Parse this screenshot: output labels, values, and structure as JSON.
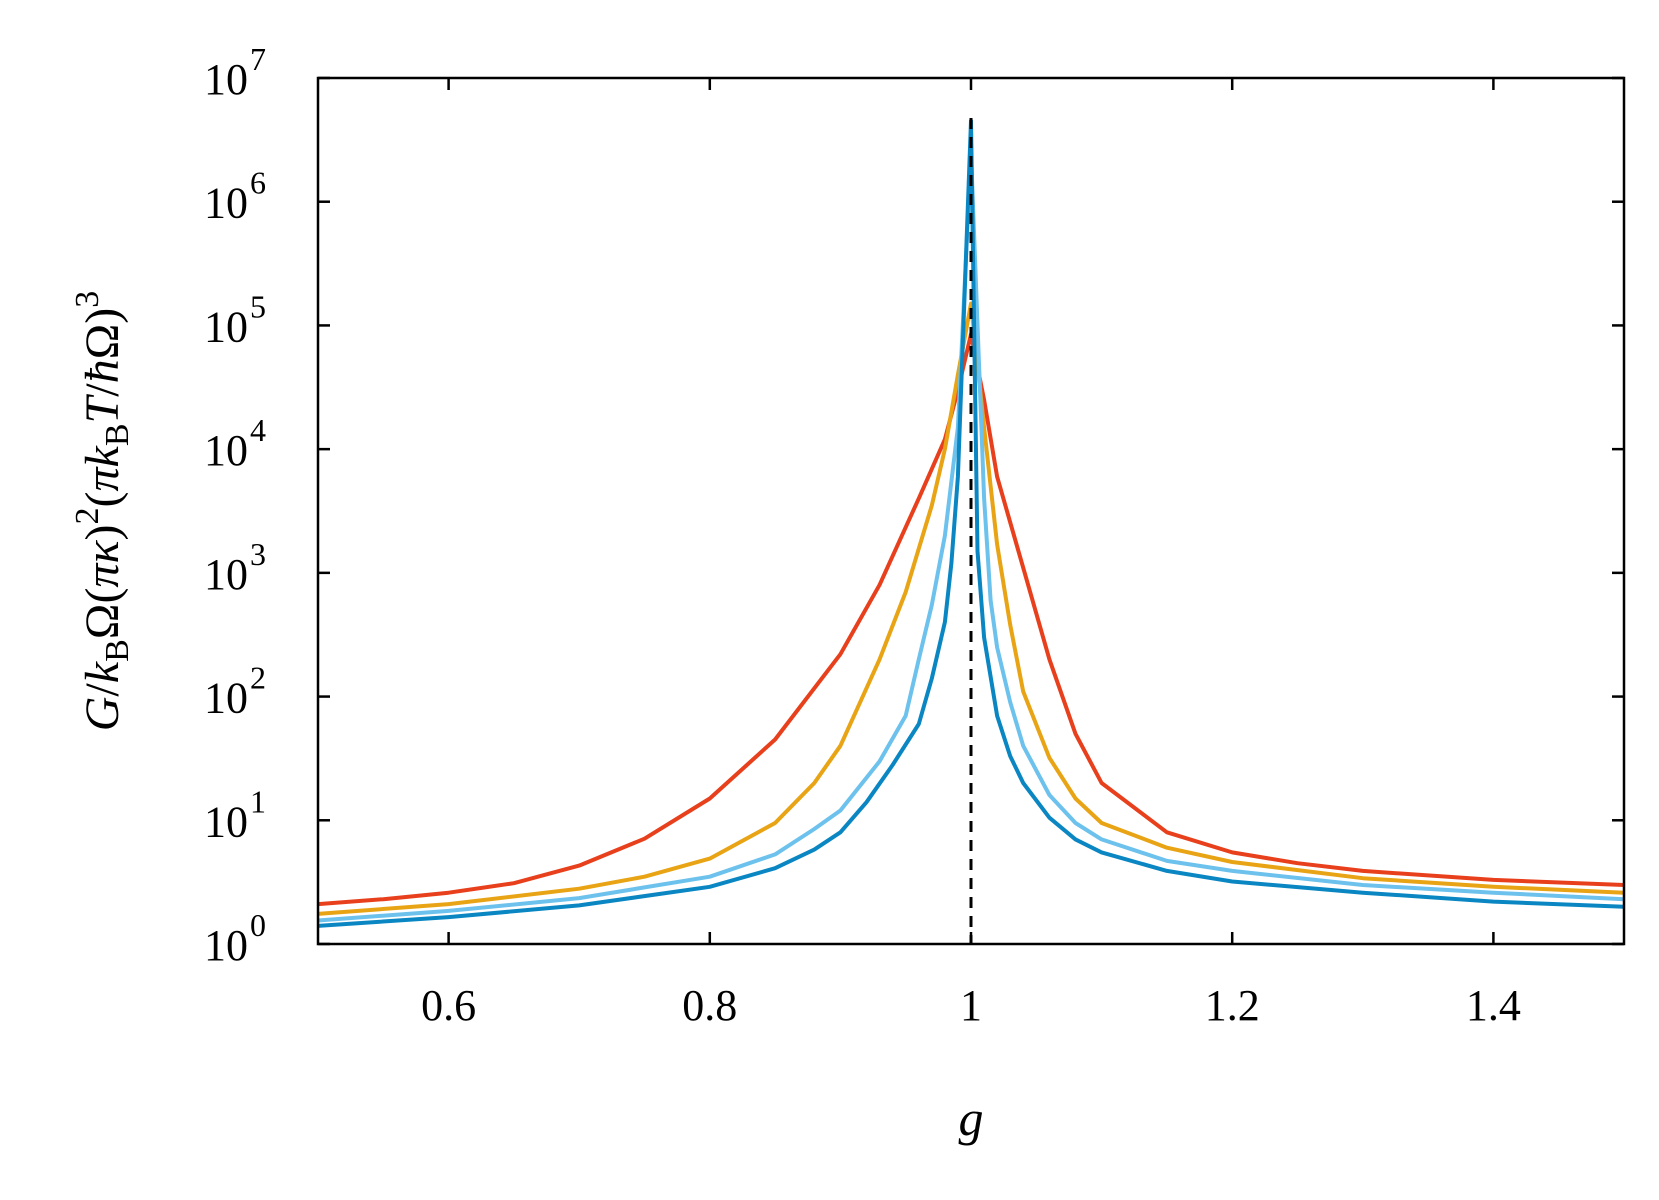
{
  "chart_data": {
    "type": "line",
    "xlabel": "g",
    "ylabel_parts": {
      "G": "G",
      "slash1": "/",
      "kB1_k": "k",
      "kB1_sub": "B",
      "omega1": "Ω(",
      "pi1": "π",
      "kappa": "κ",
      "close1": ")",
      "sup1": "2",
      "open2": "(",
      "pi2": "π",
      "kB2_k": "k",
      "kB2_sub": "B",
      "T": "T",
      "slash2": "/",
      "hbar": "ħ",
      "omega2": "Ω)",
      "sup2": "3"
    },
    "xlim": [
      0.5,
      1.5
    ],
    "ylim": [
      1,
      10000000
    ],
    "yscale": "log",
    "x_ticks": [
      {
        "value": 0.6,
        "label": "0.6"
      },
      {
        "value": 0.8,
        "label": "0.8"
      },
      {
        "value": 1.0,
        "label": "1"
      },
      {
        "value": 1.2,
        "label": "1.2"
      },
      {
        "value": 1.4,
        "label": "1.4"
      }
    ],
    "y_ticks": [
      {
        "value": 1,
        "base": "10",
        "exp": "0"
      },
      {
        "value": 10,
        "base": "10",
        "exp": "1"
      },
      {
        "value": 100,
        "base": "10",
        "exp": "2"
      },
      {
        "value": 1000,
        "base": "10",
        "exp": "3"
      },
      {
        "value": 10000,
        "base": "10",
        "exp": "4"
      },
      {
        "value": 100000,
        "base": "10",
        "exp": "5"
      },
      {
        "value": 1000000,
        "base": "10",
        "exp": "6"
      },
      {
        "value": 10000000,
        "base": "10",
        "exp": "7"
      }
    ],
    "reference_line": {
      "x": 1.0,
      "style": "dashed",
      "color": "#000000"
    },
    "grid": false,
    "legend": "none",
    "series": [
      {
        "color": "#e8401c",
        "points": [
          [
            0.5,
            2.1
          ],
          [
            0.55,
            2.3
          ],
          [
            0.6,
            2.6
          ],
          [
            0.65,
            3.1
          ],
          [
            0.7,
            4.3
          ],
          [
            0.75,
            7.1
          ],
          [
            0.8,
            15
          ],
          [
            0.85,
            45
          ],
          [
            0.9,
            220
          ],
          [
            0.93,
            800
          ],
          [
            0.96,
            4000
          ],
          [
            0.98,
            12000
          ],
          [
            0.99,
            30000
          ],
          [
            1.0,
            85000
          ],
          [
            1.01,
            25000
          ],
          [
            1.02,
            6000
          ],
          [
            1.04,
            1100
          ],
          [
            1.06,
            200
          ],
          [
            1.08,
            50
          ],
          [
            1.1,
            20
          ],
          [
            1.15,
            8
          ],
          [
            1.2,
            5.5
          ],
          [
            1.25,
            4.5
          ],
          [
            1.3,
            3.9
          ],
          [
            1.4,
            3.3
          ],
          [
            1.5,
            3.0
          ]
        ]
      },
      {
        "color": "#e8a414",
        "points": [
          [
            0.5,
            1.75
          ],
          [
            0.6,
            2.1
          ],
          [
            0.7,
            2.8
          ],
          [
            0.75,
            3.5
          ],
          [
            0.8,
            4.9
          ],
          [
            0.85,
            9.5
          ],
          [
            0.88,
            20
          ],
          [
            0.9,
            40
          ],
          [
            0.93,
            200
          ],
          [
            0.95,
            700
          ],
          [
            0.97,
            3500
          ],
          [
            0.98,
            10000
          ],
          [
            0.99,
            40000
          ],
          [
            1.0,
            150000
          ],
          [
            1.01,
            15000
          ],
          [
            1.02,
            1700
          ],
          [
            1.03,
            380
          ],
          [
            1.04,
            110
          ],
          [
            1.06,
            32
          ],
          [
            1.08,
            15
          ],
          [
            1.1,
            9.5
          ],
          [
            1.15,
            6
          ],
          [
            1.2,
            4.6
          ],
          [
            1.3,
            3.4
          ],
          [
            1.4,
            2.9
          ],
          [
            1.5,
            2.6
          ]
        ]
      },
      {
        "color": "#6cc2ec",
        "points": [
          [
            0.5,
            1.55
          ],
          [
            0.6,
            1.85
          ],
          [
            0.7,
            2.35
          ],
          [
            0.8,
            3.5
          ],
          [
            0.85,
            5.3
          ],
          [
            0.88,
            8.5
          ],
          [
            0.9,
            12
          ],
          [
            0.93,
            30
          ],
          [
            0.95,
            70
          ],
          [
            0.96,
            200
          ],
          [
            0.97,
            550
          ],
          [
            0.98,
            2000
          ],
          [
            0.99,
            15000
          ],
          [
            1.0,
            2500000
          ],
          [
            1.01,
            4000
          ],
          [
            1.015,
            600
          ],
          [
            1.02,
            250
          ],
          [
            1.03,
            90
          ],
          [
            1.04,
            40
          ],
          [
            1.06,
            16
          ],
          [
            1.08,
            9.5
          ],
          [
            1.1,
            7
          ],
          [
            1.15,
            4.7
          ],
          [
            1.2,
            3.9
          ],
          [
            1.3,
            3.0
          ],
          [
            1.4,
            2.6
          ],
          [
            1.5,
            2.3
          ]
        ]
      },
      {
        "color": "#0a86c2",
        "points": [
          [
            0.5,
            1.4
          ],
          [
            0.6,
            1.65
          ],
          [
            0.7,
            2.05
          ],
          [
            0.8,
            2.9
          ],
          [
            0.85,
            4.1
          ],
          [
            0.88,
            5.8
          ],
          [
            0.9,
            8
          ],
          [
            0.92,
            14
          ],
          [
            0.94,
            28
          ],
          [
            0.96,
            60
          ],
          [
            0.97,
            140
          ],
          [
            0.98,
            400
          ],
          [
            0.985,
            1200
          ],
          [
            0.99,
            6000
          ],
          [
            1.0,
            4500000
          ],
          [
            1.005,
            1500
          ],
          [
            1.01,
            300
          ],
          [
            1.02,
            70
          ],
          [
            1.03,
            33
          ],
          [
            1.04,
            20
          ],
          [
            1.06,
            10.5
          ],
          [
            1.08,
            7
          ],
          [
            1.1,
            5.5
          ],
          [
            1.15,
            3.9
          ],
          [
            1.2,
            3.2
          ],
          [
            1.3,
            2.6
          ],
          [
            1.4,
            2.2
          ],
          [
            1.5,
            2.0
          ]
        ]
      }
    ]
  }
}
